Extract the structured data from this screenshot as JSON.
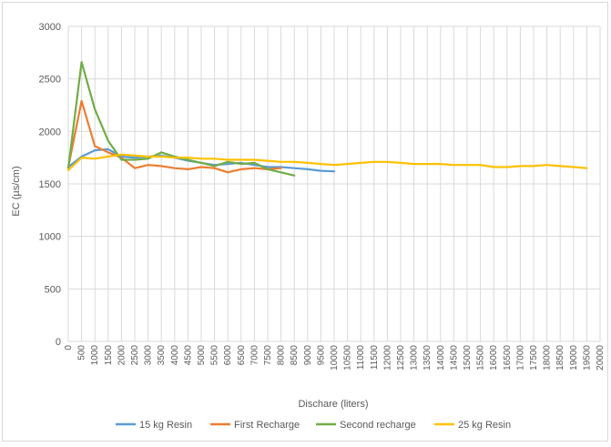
{
  "chart_data": {
    "type": "line",
    "title": "",
    "xlabel": "Dischare (liters)",
    "ylabel": "EC (µs/cm)",
    "ylim": [
      0,
      3000
    ],
    "yticks": [
      0,
      500,
      1000,
      1500,
      2000,
      2500,
      3000
    ],
    "xlim": [
      0,
      20000
    ],
    "xtick_step": 500,
    "grid": "both",
    "legend_position": "bottom",
    "series": [
      {
        "name": "15 kg Resin",
        "color": "#5B9BD5",
        "x": [
          0,
          500,
          1000,
          1500,
          2000,
          2500,
          3000,
          3500,
          4000,
          4500,
          5000,
          5500,
          6000,
          6500,
          7000,
          7500,
          8000,
          8500,
          9000,
          9500,
          10000
        ],
        "y": [
          1660,
          1760,
          1820,
          1830,
          1760,
          1750,
          1760,
          1770,
          1750,
          1720,
          1700,
          1680,
          1690,
          1700,
          1680,
          1660,
          1660,
          1650,
          1640,
          1625,
          1620
        ]
      },
      {
        "name": "First Recharge",
        "color": "#ED7D31",
        "x": [
          0,
          500,
          1000,
          1500,
          2000,
          2500,
          3000,
          3500,
          4000,
          4500,
          5000,
          5500,
          6000,
          6500,
          7000,
          7500,
          8000
        ],
        "y": [
          1660,
          2290,
          1860,
          1800,
          1750,
          1650,
          1680,
          1670,
          1650,
          1640,
          1660,
          1650,
          1610,
          1640,
          1650,
          1640,
          1650
        ]
      },
      {
        "name": "Second recharge",
        "color": "#70AD47",
        "x": [
          0,
          500,
          1000,
          1500,
          2000,
          2500,
          3000,
          3500,
          4000,
          4500,
          5000,
          5500,
          6000,
          6500,
          7000,
          7500,
          8000,
          8500
        ],
        "y": [
          1650,
          2660,
          2210,
          1910,
          1730,
          1730,
          1740,
          1800,
          1760,
          1730,
          1700,
          1670,
          1710,
          1690,
          1700,
          1640,
          1610,
          1580
        ]
      },
      {
        "name": "25 kg Resin",
        "color": "#FFC000",
        "x": [
          0,
          500,
          1000,
          1500,
          2000,
          2500,
          3000,
          3500,
          4000,
          4500,
          5000,
          5500,
          6000,
          6500,
          7000,
          7500,
          8000,
          8500,
          9000,
          9500,
          10000,
          10500,
          11000,
          11500,
          12000,
          12500,
          13000,
          13500,
          14000,
          14500,
          15000,
          15500,
          16000,
          16500,
          17000,
          17500,
          18000,
          18500,
          19000,
          19500
        ],
        "y": [
          1630,
          1750,
          1740,
          1760,
          1780,
          1770,
          1760,
          1760,
          1750,
          1750,
          1740,
          1740,
          1730,
          1730,
          1730,
          1720,
          1710,
          1710,
          1700,
          1690,
          1680,
          1690,
          1700,
          1710,
          1710,
          1700,
          1690,
          1690,
          1690,
          1680,
          1680,
          1680,
          1660,
          1660,
          1670,
          1670,
          1680,
          1670,
          1660,
          1650
        ]
      }
    ]
  }
}
